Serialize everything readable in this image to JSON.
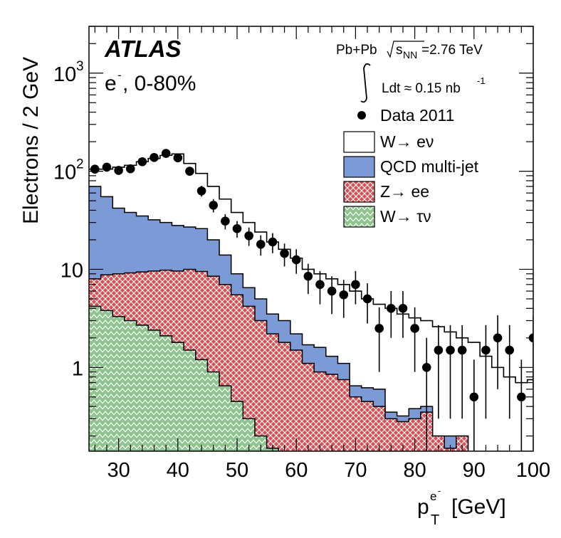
{
  "chart_data": {
    "type": "histogram",
    "experiment": "ATLAS",
    "charge_label": "e",
    "charge_sign": "-",
    "centrality": ", 0-80%",
    "system": "Pb+Pb",
    "energy_prefix": "s",
    "energy_sub": "NN",
    "energy_value": "=2.76 TeV",
    "lumi_text": "Ldt ≈ 0.15 nb",
    "lumi_exp": "-1",
    "ylabel": "Electrons / 2 GeV",
    "xlabel_main": "p",
    "xlabel_sub": "T",
    "xlabel_sup": "e",
    "xlabel_sup_sign": "-",
    "xlabel_unit": "[GeV]",
    "xlim": [
      25,
      100
    ],
    "ylim": [
      0.14,
      3000
    ],
    "yscale": "log",
    "x_ticks": [
      30,
      40,
      50,
      60,
      70,
      80,
      90,
      100
    ],
    "x_tick_labels": [
      "30",
      "40",
      "50",
      "60",
      "70",
      "80",
      "90",
      "100"
    ],
    "y_tick_labels": [
      {
        "value": 1,
        "base": "1",
        "exp": ""
      },
      {
        "value": 10,
        "base": "10",
        "exp": ""
      },
      {
        "value": 100,
        "base": "10",
        "exp": "2"
      },
      {
        "value": 1000,
        "base": "10",
        "exp": "3"
      }
    ],
    "bin_edges": [
      25,
      27,
      29,
      31,
      33,
      35,
      37,
      39,
      41,
      43,
      45,
      47,
      49,
      51,
      53,
      55,
      57,
      59,
      61,
      63,
      65,
      67,
      69,
      71,
      73,
      75,
      77,
      79,
      81,
      83,
      85,
      87,
      89,
      91,
      93,
      95,
      97,
      99,
      101
    ],
    "legend": [
      {
        "key": "data",
        "label": "Data 2011",
        "color": "#000000"
      },
      {
        "key": "w_enu",
        "label": "W→ eν",
        "color": "#ffffff"
      },
      {
        "key": "qcd",
        "label": "QCD multi-jet",
        "color": "#7b9ad6"
      },
      {
        "key": "z_ee",
        "label": "Z→ ee",
        "color": "#d94f55"
      },
      {
        "key": "w_taunu",
        "label": "W→ τν",
        "color": "#8fc48f"
      }
    ],
    "series": [
      {
        "name": "W→ τν",
        "values": [
          4.2,
          3.8,
          3.3,
          3.0,
          2.7,
          2.4,
          2.1,
          1.8,
          1.5,
          1.2,
          0.9,
          0.65,
          0.45,
          0.3,
          0.2,
          0.15,
          0.12,
          0.1,
          0,
          0,
          0,
          0,
          0,
          0,
          0,
          0,
          0,
          0,
          0,
          0,
          0,
          0,
          0,
          0,
          0,
          0,
          0,
          0
        ]
      },
      {
        "name": "Z→ ee (cumulative)",
        "values": [
          8.0,
          8.8,
          9.0,
          9.2,
          9.4,
          9.6,
          9.8,
          9.6,
          10.0,
          9.5,
          8.5,
          7.0,
          5.5,
          4.2,
          3.0,
          2.2,
          1.8,
          1.5,
          1.1,
          0.9,
          0.85,
          0.75,
          0.5,
          0.45,
          0.4,
          0.3,
          0.28,
          0.3,
          0.35,
          0.2,
          0.15,
          0.2,
          0,
          0,
          0,
          0,
          0,
          0
        ]
      },
      {
        "name": "QCD multi-jet (cumulative)",
        "values": [
          70,
          55,
          42,
          38,
          35,
          32,
          30,
          28,
          27,
          26,
          20,
          14,
          9.0,
          6.5,
          5.0,
          3.5,
          3.0,
          2.2,
          1.7,
          1.6,
          1.3,
          1.1,
          0.65,
          0.62,
          0.6,
          0.35,
          0.32,
          0.38,
          0.4,
          0.2,
          0.2,
          0.2,
          0,
          0,
          0,
          0,
          0,
          0
        ]
      },
      {
        "name": "W→ eν (total)",
        "values": [
          105,
          105,
          110,
          115,
          125,
          135,
          145,
          150,
          120,
          95,
          70,
          52,
          38,
          30,
          24,
          19,
          16,
          13,
          10,
          9,
          8,
          7,
          6,
          5,
          4.4,
          4.0,
          3.5,
          3.2,
          3.0,
          2.6,
          2.3,
          2.0,
          1.8,
          1.3,
          1.0,
          0.8,
          0.7,
          0.75
        ]
      }
    ],
    "data_points": [
      {
        "x": 26,
        "y": 105,
        "err": 10
      },
      {
        "x": 28,
        "y": 110,
        "err": 10
      },
      {
        "x": 30,
        "y": 102,
        "err": 10
      },
      {
        "x": 32,
        "y": 106,
        "err": 10
      },
      {
        "x": 34,
        "y": 125,
        "err": 11
      },
      {
        "x": 36,
        "y": 138,
        "err": 12
      },
      {
        "x": 38,
        "y": 152,
        "err": 12
      },
      {
        "x": 40,
        "y": 137,
        "err": 12
      },
      {
        "x": 42,
        "y": 100,
        "err": 10
      },
      {
        "x": 44,
        "y": 63,
        "err": 8
      },
      {
        "x": 46,
        "y": 45,
        "err": 7
      },
      {
        "x": 48,
        "y": 31,
        "err": 5.5
      },
      {
        "x": 50,
        "y": 26,
        "err": 5
      },
      {
        "x": 52,
        "y": 22,
        "err": 4.7
      },
      {
        "x": 54,
        "y": 18,
        "err": 4.2
      },
      {
        "x": 56,
        "y": 19,
        "err": 4.4
      },
      {
        "x": 58,
        "y": 14.5,
        "err": 3.8
      },
      {
        "x": 60,
        "y": 12.5,
        "err": 3.5
      },
      {
        "x": 62,
        "y": 8.5,
        "err": 2.9
      },
      {
        "x": 64,
        "y": 7.0,
        "err": 2.6
      },
      {
        "x": 66,
        "y": 6.0,
        "err": 2.5
      },
      {
        "x": 68,
        "y": 5.5,
        "err": 2.3
      },
      {
        "x": 70,
        "y": 7.0,
        "err": 2.6
      },
      {
        "x": 72,
        "y": 5.0,
        "err": 2.2
      },
      {
        "x": 74,
        "y": 2.5,
        "err": 1.6
      },
      {
        "x": 76,
        "y": 4.0,
        "err": 2.0
      },
      {
        "x": 78,
        "y": 4.0,
        "err": 2.0
      },
      {
        "x": 80,
        "y": 2.5,
        "err": 1.6
      },
      {
        "x": 82,
        "y": 1.0,
        "err": 1.0
      },
      {
        "x": 84,
        "y": 1.5,
        "err": 1.2
      },
      {
        "x": 86,
        "y": 1.5,
        "err": 1.2
      },
      {
        "x": 88,
        "y": 1.5,
        "err": 1.2
      },
      {
        "x": 90,
        "y": 0.5,
        "err": 0.7
      },
      {
        "x": 92,
        "y": 1.5,
        "err": 1.2
      },
      {
        "x": 94,
        "y": 2.0,
        "err": 1.4
      },
      {
        "x": 96,
        "y": 1.5,
        "err": 1.2
      },
      {
        "x": 98,
        "y": 0.5,
        "err": 0.7
      },
      {
        "x": 100,
        "y": 2.0,
        "err": 1.4
      }
    ]
  }
}
